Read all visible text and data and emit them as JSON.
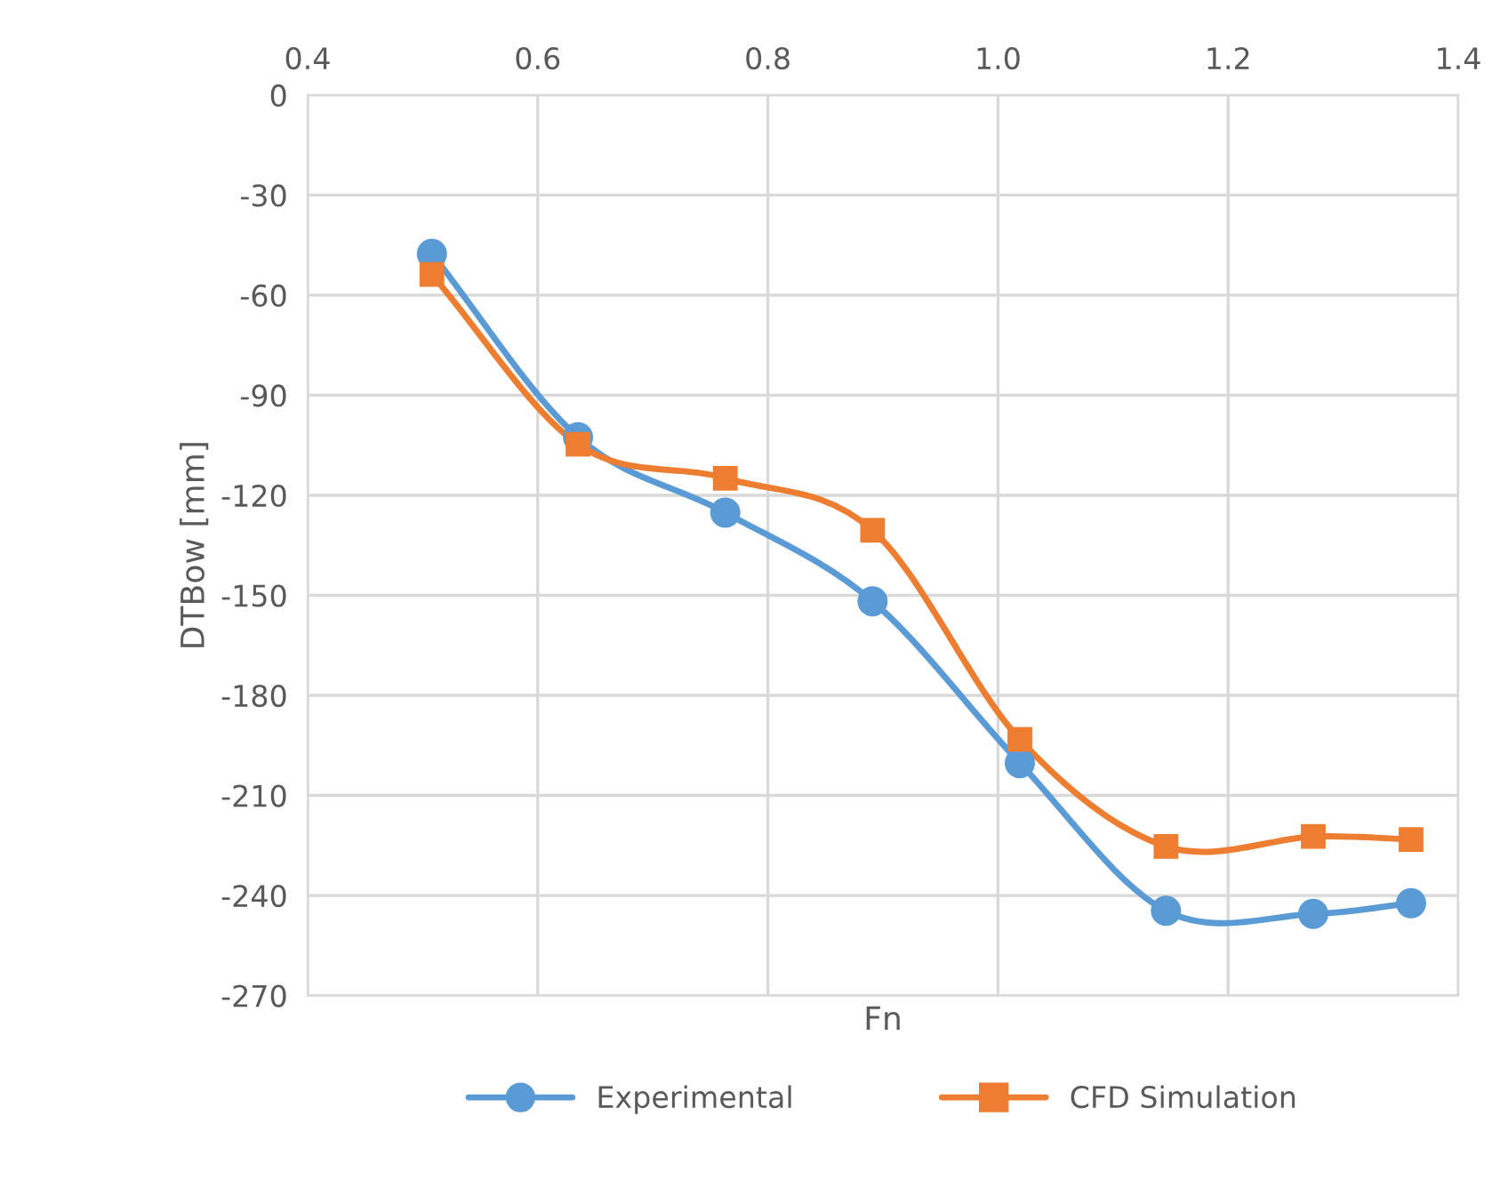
{
  "chart_data": {
    "type": "line",
    "xlabel": "Fn",
    "ylabel": "DTBow [mm]",
    "xlim": [
      0.4,
      1.4
    ],
    "xticks": [
      {
        "value": 0.4,
        "label": "0.4"
      },
      {
        "value": 0.6,
        "label": "0.6"
      },
      {
        "value": 0.8,
        "label": "0.8"
      },
      {
        "value": 1.0,
        "label": "1.0"
      },
      {
        "value": 1.2,
        "label": "1.2"
      },
      {
        "value": 1.4,
        "label": "1.4"
      }
    ],
    "ylim": [
      -270,
      0
    ],
    "yticks": [
      0,
      -30,
      -60,
      -90,
      -120,
      -150,
      -180,
      -210,
      -240,
      -270
    ],
    "x": [
      0.508,
      0.635,
      0.763,
      0.891,
      1.019,
      1.146,
      1.274,
      1.359
    ],
    "series": [
      {
        "name": "Experimental",
        "color": "#5b9bd5",
        "marker": "circle",
        "values": [
          -47.6,
          -102.6,
          -125.2,
          -151.8,
          -200.3,
          -244.6,
          -245.5,
          -242.3
        ]
      },
      {
        "name": "CFD Simulation",
        "color": "#ed7d31",
        "marker": "square",
        "values": [
          -53.8,
          -104.7,
          -114.9,
          -130.5,
          -193.2,
          -225.3,
          -222.3,
          -223.2
        ]
      }
    ],
    "grid": true,
    "legend": "bottom",
    "line_style": "solid"
  }
}
